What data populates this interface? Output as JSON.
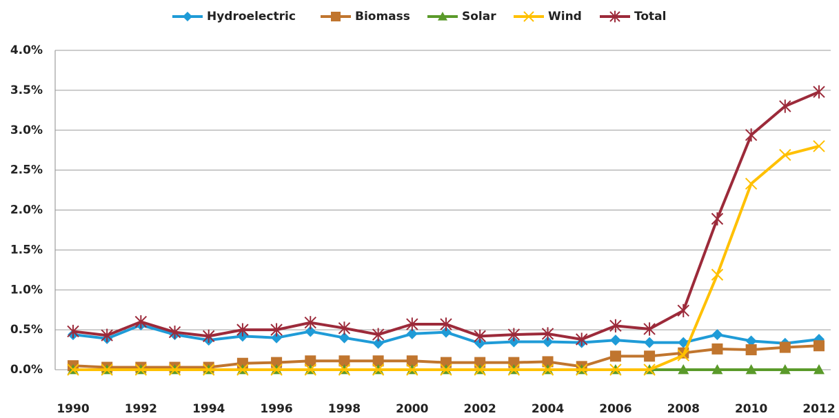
{
  "chart_data": {
    "type": "line",
    "categories": [
      "1990",
      null,
      "1992",
      null,
      "1994",
      null,
      "1996",
      null,
      "1998",
      null,
      "2000",
      null,
      "2002",
      null,
      "2004",
      null,
      "2006",
      null,
      "2008",
      null,
      "2010",
      null,
      "2012"
    ],
    "series": [
      {
        "name": "Hydroelectric",
        "color": "#1f9bd7",
        "marker": "diamond",
        "values": [
          0.44,
          0.39,
          0.56,
          0.44,
          0.37,
          0.42,
          0.4,
          0.48,
          0.4,
          0.33,
          0.45,
          0.47,
          0.33,
          0.35,
          0.35,
          0.34,
          0.37,
          0.34,
          0.34,
          0.44,
          0.36,
          0.33,
          0.38
        ]
      },
      {
        "name": "Biomass",
        "color": "#c0752e",
        "marker": "square",
        "values": [
          0.05,
          0.03,
          0.03,
          0.03,
          0.03,
          0.08,
          0.09,
          0.11,
          0.11,
          0.11,
          0.11,
          0.09,
          0.09,
          0.09,
          0.1,
          0.04,
          0.17,
          0.17,
          0.21,
          0.26,
          0.25,
          0.28,
          0.3
        ]
      },
      {
        "name": "Solar",
        "color": "#5a9a2a",
        "marker": "triangle",
        "values": [
          0,
          0,
          0,
          0,
          0,
          0,
          0,
          0,
          0,
          0,
          0,
          0,
          0,
          0,
          0,
          0,
          0,
          0,
          0,
          0,
          0,
          0,
          0
        ]
      },
      {
        "name": "Wind",
        "color": "#ffc000",
        "marker": "x",
        "values": [
          0,
          0,
          0,
          0,
          0,
          0,
          0,
          0,
          0,
          0,
          0,
          0,
          0,
          0,
          0,
          0,
          0,
          0,
          0.18,
          1.19,
          2.33,
          2.69,
          2.8
        ]
      },
      {
        "name": "Total",
        "color": "#9c2a3a",
        "marker": "star",
        "values": [
          0.48,
          0.43,
          0.6,
          0.47,
          0.42,
          0.5,
          0.5,
          0.59,
          0.52,
          0.44,
          0.57,
          0.57,
          0.42,
          0.44,
          0.45,
          0.38,
          0.55,
          0.51,
          0.74,
          1.89,
          2.94,
          3.3,
          3.48
        ]
      }
    ],
    "ylim": [
      0,
      4
    ],
    "yticks": [
      {
        "value": 0,
        "label": "0.0%"
      },
      {
        "value": 0.5,
        "label": "0.5%"
      },
      {
        "value": 1,
        "label": "1.0%"
      },
      {
        "value": 1.5,
        "label": "1.5%"
      },
      {
        "value": 2,
        "label": "2.0%"
      },
      {
        "value": 2.5,
        "label": "2.5%"
      },
      {
        "value": 3,
        "label": "3.0%"
      },
      {
        "value": 3.5,
        "label": "3.5%"
      },
      {
        "value": 4,
        "label": "4.0%"
      }
    ],
    "grid": true,
    "legend": "top"
  }
}
